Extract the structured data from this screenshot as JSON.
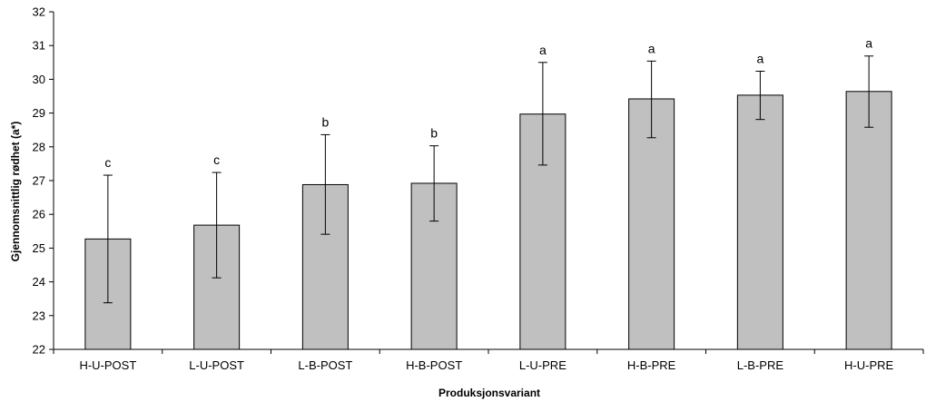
{
  "chart_data": {
    "type": "bar",
    "title": "",
    "xlabel": "Produksjonsvariant",
    "ylabel": "Gjennomsnittlig rødhet (a*)",
    "ylim": [
      22,
      32
    ],
    "yticks": [
      22,
      23,
      24,
      25,
      26,
      27,
      28,
      29,
      30,
      31,
      32
    ],
    "grid": false,
    "legend": "none",
    "categories": [
      "H-U-POST",
      "L-U-POST",
      "L-B-POST",
      "H-B-POST",
      "L-U-PRE",
      "H-B-PRE",
      "L-B-PRE",
      "H-U-PRE"
    ],
    "values": [
      25.27,
      25.68,
      26.88,
      26.92,
      28.97,
      29.42,
      29.53,
      29.64
    ],
    "error_low": [
      23.38,
      24.12,
      25.41,
      25.8,
      27.46,
      28.27,
      28.81,
      28.58
    ],
    "error_high": [
      27.16,
      27.24,
      28.36,
      28.03,
      30.5,
      30.54,
      30.24,
      30.69
    ],
    "significance_labels": [
      "c",
      "c",
      "b",
      "b",
      "a",
      "a",
      "a",
      "a"
    ],
    "bar_color": "#c0c0c0",
    "bar_edge_color": "#000000"
  }
}
